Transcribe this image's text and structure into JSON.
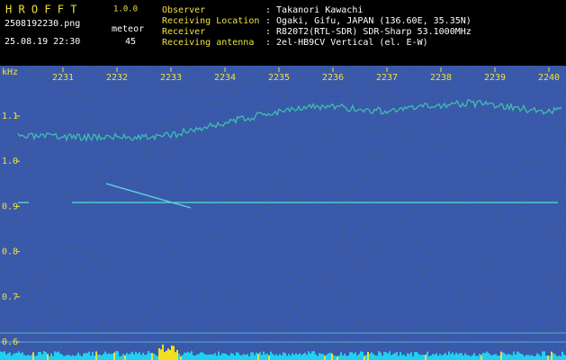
{
  "header": {
    "app_name": "H R O F F T",
    "version": "1.0.0",
    "file": "2508192230.png",
    "label": "meteor",
    "datetime": "25.08.19 22:30",
    "count": "45"
  },
  "info": [
    {
      "key": "Observer",
      "value": ": Takanori Kawachi"
    },
    {
      "key": "Receiving Location",
      "value": ": Ogaki, Gifu, JAPAN (136.60E, 35.35N)"
    },
    {
      "key": "Receiver",
      "value": ": R820T2(RTL-SDR) SDR-Sharp 53.1000MHz"
    },
    {
      "key": "Receiving antenna",
      "value": ": 2el-HB9CV Vertical (el. E-W)"
    }
  ],
  "axes": {
    "y_unit": "kHz",
    "y_labels": [
      "1.1",
      "1.0",
      "0.9",
      "0.8",
      "0.7",
      "0.6"
    ],
    "x_labels": [
      "2231",
      "2232",
      "2233",
      "2234",
      "2235",
      "2236",
      "2237",
      "2238",
      "2239",
      "2240"
    ]
  }
}
